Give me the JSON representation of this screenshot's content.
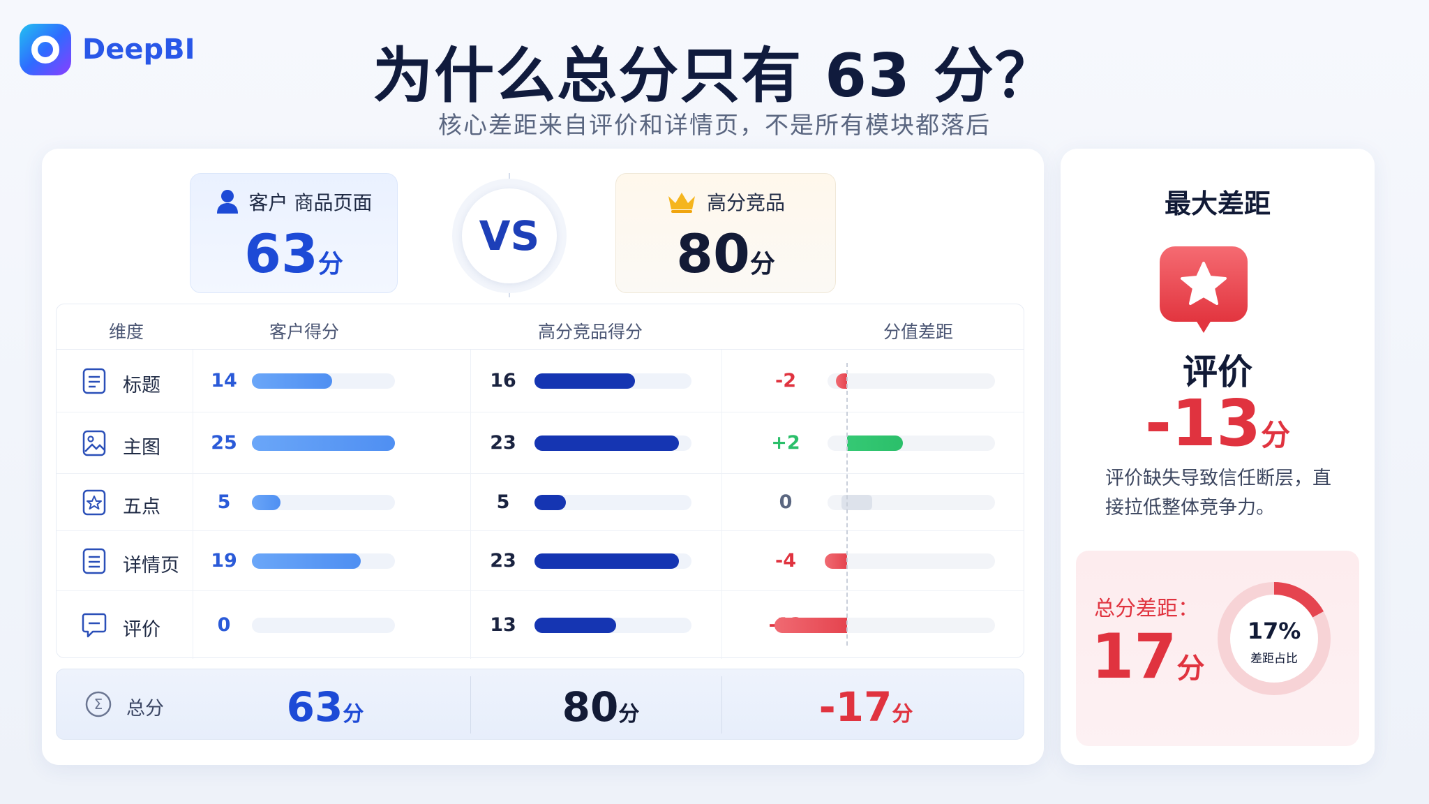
{
  "brand": {
    "name": "DeepBI"
  },
  "header": {
    "title": "为什么总分只有 63 分？",
    "subtitle": "核心差距来自评价和详情页，不是所有模块都落后"
  },
  "compare": {
    "customer": {
      "label": "客户 商品页面",
      "score": "63",
      "unit": "分"
    },
    "vs": "VS",
    "competitor": {
      "label": "高分竞品",
      "score": "80",
      "unit": "分"
    }
  },
  "table": {
    "headers": {
      "dimension": "维度",
      "customer": "客户得分",
      "competitor": "高分竞品得分",
      "gap": "分值差距"
    },
    "rows": [
      {
        "name": "标题",
        "icon": "document-icon",
        "customer": 14,
        "competitor": 16,
        "gap": "-2",
        "gap_value": -2,
        "customer_max": 25,
        "competitor_max": 25
      },
      {
        "name": "主图",
        "icon": "image-icon",
        "customer": 25,
        "competitor": 23,
        "gap": "+2",
        "gap_value": 2,
        "customer_max": 25,
        "competitor_max": 25
      },
      {
        "name": "五点",
        "icon": "star-square-icon",
        "customer": 5,
        "competitor": 5,
        "gap": "0",
        "gap_value": 0,
        "customer_max": 25,
        "competitor_max": 25
      },
      {
        "name": "详情页",
        "icon": "list-document-icon",
        "customer": 19,
        "competitor": 23,
        "gap": "-4",
        "gap_value": -4,
        "customer_max": 25,
        "competitor_max": 25
      },
      {
        "name": "评价",
        "icon": "comment-icon",
        "customer": 0,
        "competitor": 13,
        "gap": "-13",
        "gap_value": -13,
        "customer_max": 25,
        "competitor_max": 25
      }
    ],
    "totals": {
      "label": "总分",
      "customer": "63",
      "competitor": "80",
      "gap": "-17",
      "unit": "分"
    }
  },
  "side": {
    "title": "最大差距",
    "dimension": "评价",
    "gap": "-13",
    "unit": "分",
    "description": "评价缺失导致信任断层，直接拉低整体竞争力。",
    "summary": {
      "label": "总分差距：",
      "value": "17",
      "unit": "分",
      "percent": "17%",
      "percent_value": 0.17,
      "percent_label": "差距占比"
    }
  },
  "colors": {
    "customer_bar": "#5b97f4",
    "competitor_bar": "#1535b2",
    "negative": "#e0333f",
    "positive": "#2bbf6a",
    "neutral": "#5a6680"
  }
}
